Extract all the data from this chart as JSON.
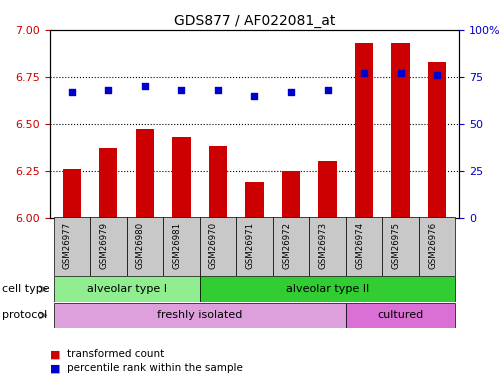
{
  "title": "GDS877 / AF022081_at",
  "samples": [
    "GSM26977",
    "GSM26979",
    "GSM26980",
    "GSM26981",
    "GSM26970",
    "GSM26971",
    "GSM26972",
    "GSM26973",
    "GSM26974",
    "GSM26975",
    "GSM26976"
  ],
  "red_values": [
    6.26,
    6.37,
    6.47,
    6.43,
    6.38,
    6.19,
    6.25,
    6.3,
    6.93,
    6.93,
    6.83
  ],
  "blue_values": [
    67,
    68,
    70,
    68,
    68,
    65,
    67,
    68,
    77,
    77,
    76
  ],
  "ylim_left": [
    6.0,
    7.0
  ],
  "ylim_right": [
    0,
    100
  ],
  "yticks_left": [
    6.0,
    6.25,
    6.5,
    6.75,
    7.0
  ],
  "yticks_right": [
    0,
    25,
    50,
    75,
    100
  ],
  "cell_type_groups": [
    {
      "label": "alveolar type I",
      "start": 0,
      "end": 3,
      "color": "#90EE90"
    },
    {
      "label": "alveolar type II",
      "start": 4,
      "end": 10,
      "color": "#32CD32"
    }
  ],
  "protocol_groups": [
    {
      "label": "freshly isolated",
      "start": 0,
      "end": 7,
      "color": "#DDA0DD"
    },
    {
      "label": "cultured",
      "start": 8,
      "end": 10,
      "color": "#DA70D6"
    }
  ],
  "bar_color": "#CC0000",
  "dot_color": "#0000CC",
  "grid_color": "#000000",
  "axis_color_left": "#CC0000",
  "axis_color_right": "#0000CC",
  "tick_bg_color": "#C8C8C8",
  "legend_red_label": "transformed count",
  "legend_blue_label": "percentile rank within the sample"
}
